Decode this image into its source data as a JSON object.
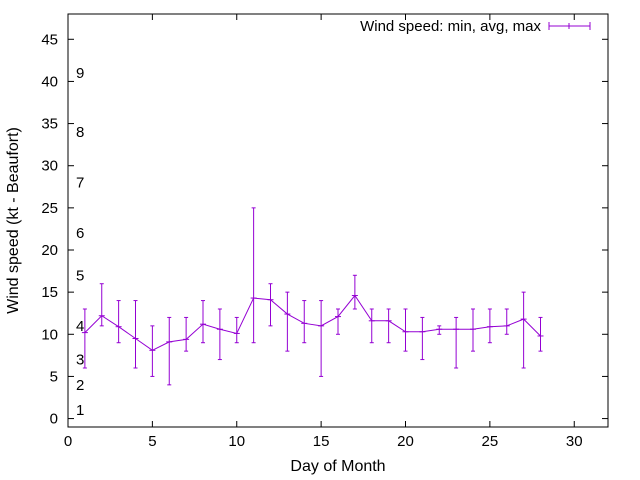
{
  "chart_data": {
    "type": "line",
    "title": "",
    "xlabel": "Day of Month",
    "ylabel": "Wind speed (kt - Beaufort)",
    "xlim": [
      0,
      32
    ],
    "ylim": [
      -1,
      48
    ],
    "x_ticks": [
      0,
      5,
      10,
      15,
      20,
      25,
      30
    ],
    "y_ticks": [
      0,
      5,
      10,
      15,
      20,
      25,
      30,
      35,
      40,
      45
    ],
    "grid": false,
    "legend_position": "top-right",
    "series": [
      {
        "name": "Wind speed: min, avg, max",
        "color": "#9400d3",
        "points": [
          {
            "x": 1,
            "avg": 10.2,
            "min": 6,
            "max": 13
          },
          {
            "x": 2,
            "avg": 12.2,
            "min": 11,
            "max": 16
          },
          {
            "x": 3,
            "avg": 10.9,
            "min": 9,
            "max": 14
          },
          {
            "x": 4,
            "avg": 9.5,
            "min": 6,
            "max": 14
          },
          {
            "x": 5,
            "avg": 8.1,
            "min": 5,
            "max": 11
          },
          {
            "x": 6,
            "avg": 9.1,
            "min": 4,
            "max": 12
          },
          {
            "x": 7,
            "avg": 9.4,
            "min": 8,
            "max": 12
          },
          {
            "x": 8,
            "avg": 11.2,
            "min": 9,
            "max": 14
          },
          {
            "x": 9,
            "avg": 10.6,
            "min": 7,
            "max": 13
          },
          {
            "x": 10,
            "avg": 10.1,
            "min": 9,
            "max": 12
          },
          {
            "x": 11,
            "avg": 14.3,
            "min": 9,
            "max": 25
          },
          {
            "x": 12,
            "avg": 14.1,
            "min": 11,
            "max": 16
          },
          {
            "x": 13,
            "avg": 12.4,
            "min": 8,
            "max": 15
          },
          {
            "x": 14,
            "avg": 11.3,
            "min": 9,
            "max": 14
          },
          {
            "x": 15,
            "avg": 11.0,
            "min": 5,
            "max": 14
          },
          {
            "x": 16,
            "avg": 12.1,
            "min": 10,
            "max": 13
          },
          {
            "x": 17,
            "avg": 14.6,
            "min": 13,
            "max": 17
          },
          {
            "x": 18,
            "avg": 11.6,
            "min": 9,
            "max": 13
          },
          {
            "x": 19,
            "avg": 11.6,
            "min": 9,
            "max": 13
          },
          {
            "x": 20,
            "avg": 10.3,
            "min": 8,
            "max": 13
          },
          {
            "x": 21,
            "avg": 10.3,
            "min": 7,
            "max": 12
          },
          {
            "x": 22,
            "avg": 10.6,
            "min": 10,
            "max": 11
          },
          {
            "x": 23,
            "avg": 10.6,
            "min": 6,
            "max": 12
          },
          {
            "x": 24,
            "avg": 10.6,
            "min": 8,
            "max": 13
          },
          {
            "x": 25,
            "avg": 10.9,
            "min": 9,
            "max": 13
          },
          {
            "x": 26,
            "avg": 11.0,
            "min": 10,
            "max": 13
          },
          {
            "x": 27,
            "avg": 11.8,
            "min": 6,
            "max": 15
          },
          {
            "x": 28,
            "avg": 9.8,
            "min": 8,
            "max": 12
          }
        ]
      }
    ],
    "beaufort_labels": [
      {
        "label": "1",
        "y": 1
      },
      {
        "label": "2",
        "y": 4
      },
      {
        "label": "3",
        "y": 7
      },
      {
        "label": "4",
        "y": 11
      },
      {
        "label": "5",
        "y": 17
      },
      {
        "label": "6",
        "y": 22
      },
      {
        "label": "7",
        "y": 28
      },
      {
        "label": "8",
        "y": 34
      },
      {
        "label": "9",
        "y": 41
      }
    ]
  }
}
